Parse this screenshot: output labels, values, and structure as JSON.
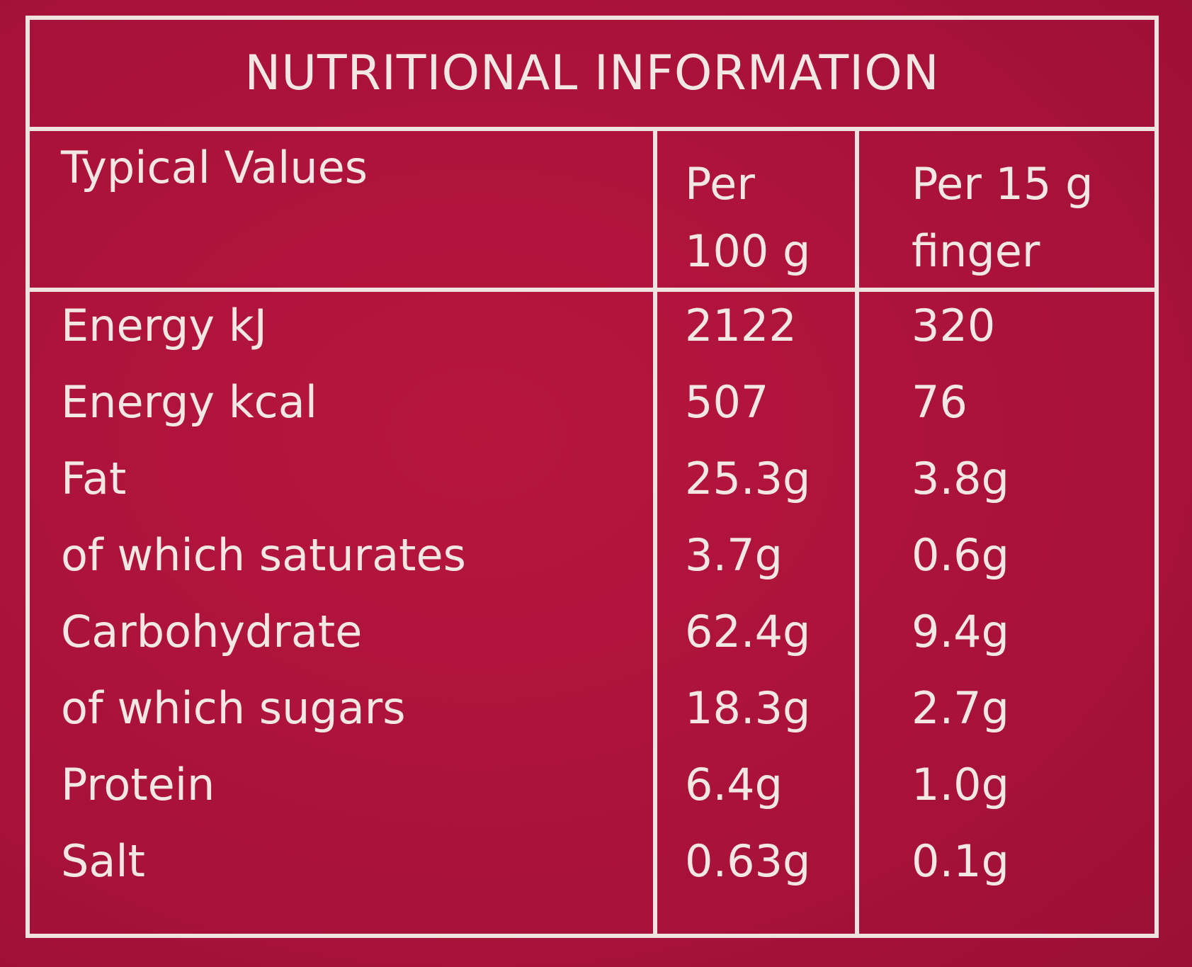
{
  "title": "NUTRITIONAL INFORMATION",
  "header": {
    "label": "Typical Values",
    "col1": [
      "Per",
      "100 g"
    ],
    "col2": [
      "Per 15 g",
      "finger"
    ]
  },
  "rows": [
    {
      "name": "Energy kJ",
      "per100": "2122",
      "per15": "320"
    },
    {
      "name": "Energy kcal",
      "per100": "507",
      "per15": "76"
    },
    {
      "name": "Fat",
      "per100": "25.3g",
      "per15": "3.8g"
    },
    {
      "name": "of which saturates",
      "per100": "3.7g",
      "per15": "0.6g"
    },
    {
      "name": "Carbohydrate",
      "per100": "62.4g",
      "per15": "9.4g"
    },
    {
      "name": "of which sugars",
      "per100": "18.3g",
      "per15": "2.7g"
    },
    {
      "name": "Protein",
      "per100": "6.4g",
      "per15": "1.0g"
    },
    {
      "name": "Salt",
      "per100": "0.63g",
      "per15": "0.1g"
    }
  ],
  "colors": {
    "background": "#b0143a",
    "text": "#f3e7e3"
  }
}
